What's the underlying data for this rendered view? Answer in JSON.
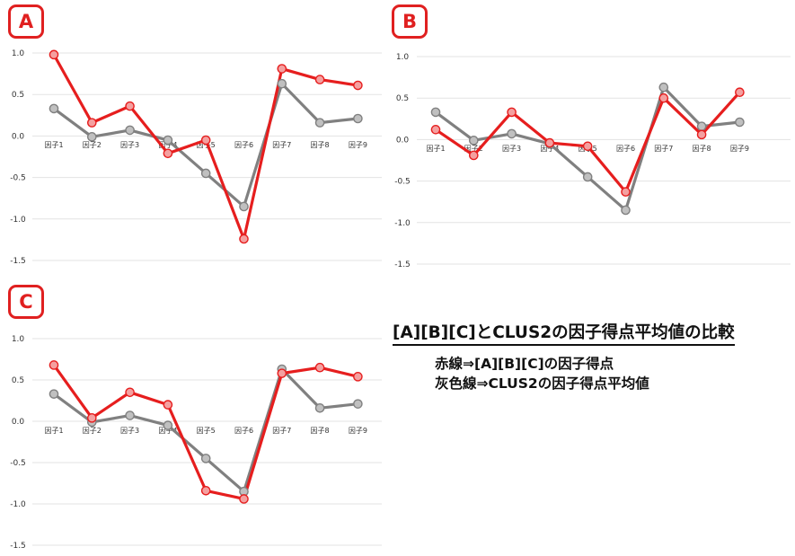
{
  "heading": "[A][B][C]とCLUS2の因子得点平均値の比較",
  "legend": {
    "red": "赤線⇒[A][B][C]の因子得点",
    "gray": "灰色線⇒CLUS2の因子得点平均値"
  },
  "colors": {
    "red": "#e61e1e",
    "red_fill": "#f4a0a0",
    "gray": "#808080",
    "gray_fill": "#c0c0c0",
    "grid": "#e3e3e3",
    "badge": "#e02020"
  },
  "chart_data": [
    {
      "type": "line",
      "badge": "A",
      "categories": [
        "因子1",
        "因子2",
        "因子3",
        "因子4",
        "因子5",
        "因子6",
        "因子7",
        "因子8",
        "因子9"
      ],
      "yticks": [
        "1.0",
        "0.5",
        "0.0",
        "-0.5",
        "-1.0",
        "-1.5"
      ],
      "ylim": [
        -1.5,
        1.0
      ],
      "grid": true,
      "series": [
        {
          "values": [
            0.98,
            0.16,
            0.36,
            -0.21,
            -0.05,
            -1.24,
            0.81,
            0.68,
            0.61
          ]
        },
        {
          "values": [
            0.33,
            -0.01,
            0.07,
            -0.05,
            -0.45,
            -0.85,
            0.63,
            0.16,
            0.21
          ]
        }
      ]
    },
    {
      "type": "line",
      "badge": "B",
      "categories": [
        "因子1",
        "因子2",
        "因子3",
        "因子4",
        "因子5",
        "因子6",
        "因子7",
        "因子8",
        "因子9"
      ],
      "yticks": [
        "1.0",
        "0.5",
        "0.0",
        "-0.5",
        "-1.0",
        "-1.5"
      ],
      "ylim": [
        -1.5,
        1.0
      ],
      "grid": true,
      "series": [
        {
          "values": [
            0.12,
            -0.19,
            0.33,
            -0.04,
            -0.08,
            -0.63,
            0.5,
            0.06,
            0.57
          ]
        },
        {
          "values": [
            0.33,
            -0.01,
            0.07,
            -0.05,
            -0.45,
            -0.85,
            0.63,
            0.16,
            0.21
          ]
        }
      ]
    },
    {
      "type": "line",
      "badge": "C",
      "categories": [
        "因子1",
        "因子2",
        "因子3",
        "因子4",
        "因子5",
        "因子6",
        "因子7",
        "因子8",
        "因子9"
      ],
      "yticks": [
        "1.0",
        "0.5",
        "0.0",
        "-0.5",
        "-1.0",
        "-1.5"
      ],
      "ylim": [
        -1.5,
        1.0
      ],
      "grid": true,
      "series": [
        {
          "values": [
            0.68,
            0.04,
            0.35,
            0.2,
            -0.84,
            -0.94,
            0.58,
            0.65,
            0.54
          ]
        },
        {
          "values": [
            0.33,
            -0.01,
            0.07,
            -0.05,
            -0.45,
            -0.85,
            0.63,
            0.16,
            0.21
          ]
        }
      ]
    }
  ]
}
